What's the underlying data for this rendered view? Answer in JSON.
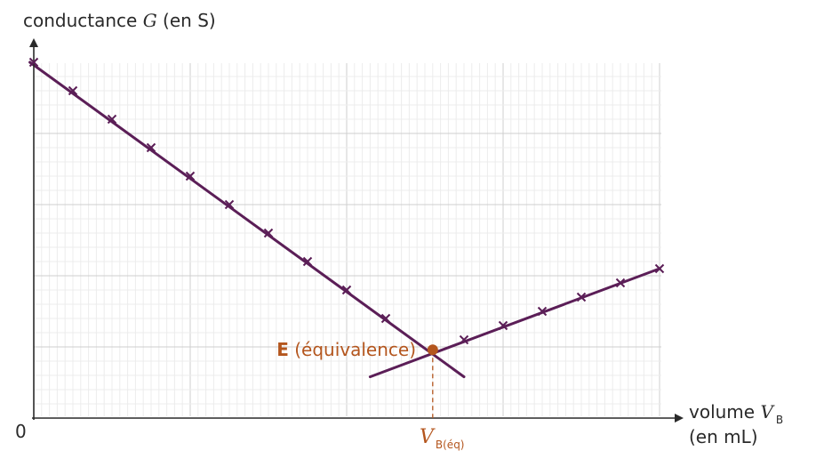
{
  "chart_data": {
    "type": "line",
    "title": "",
    "ylabel": {
      "prefix": "conductance ",
      "symbol": "G",
      "suffix": " (en S)"
    },
    "xlabel": {
      "prefix": "volume ",
      "symbol": "V",
      "subscript": "B",
      "unit": "(en mL)"
    },
    "origin_label": "0",
    "xlim": [
      0,
      16
    ],
    "ylim": [
      0,
      5
    ],
    "grid": true,
    "series": [
      {
        "values": [
          [
            0,
            5.0
          ],
          [
            1,
            4.6
          ],
          [
            2,
            4.2
          ],
          [
            3,
            3.8
          ],
          [
            4,
            3.4
          ],
          [
            5,
            3.0
          ],
          [
            6,
            2.6
          ],
          [
            7,
            2.2
          ],
          [
            8,
            1.8
          ],
          [
            9,
            1.4
          ]
        ]
      },
      {
        "values": [
          [
            11,
            1.1
          ],
          [
            12,
            1.3
          ],
          [
            13,
            1.5
          ],
          [
            14,
            1.7
          ],
          [
            15,
            1.9
          ],
          [
            16,
            2.1
          ]
        ]
      }
    ],
    "fit_lines": [
      {
        "from": [
          -0.1,
          5.0
        ],
        "to": [
          11.0,
          0.58
        ]
      },
      {
        "from": [
          8.6,
          0.58
        ],
        "to": [
          16.0,
          2.1
        ]
      }
    ],
    "equivalence_point": {
      "x": 10.2,
      "y": 0.96
    },
    "annotations": {
      "point_letter": "E",
      "point_text": " (équivalence)",
      "veq_symbol": "V",
      "veq_subscript": "B(éq)"
    },
    "colors": {
      "line": "#5b1e57",
      "point": "#b4561e",
      "axis": "#2a2a2a",
      "grid_minor": "#ececec",
      "grid_major": "#cfcfcf"
    }
  }
}
